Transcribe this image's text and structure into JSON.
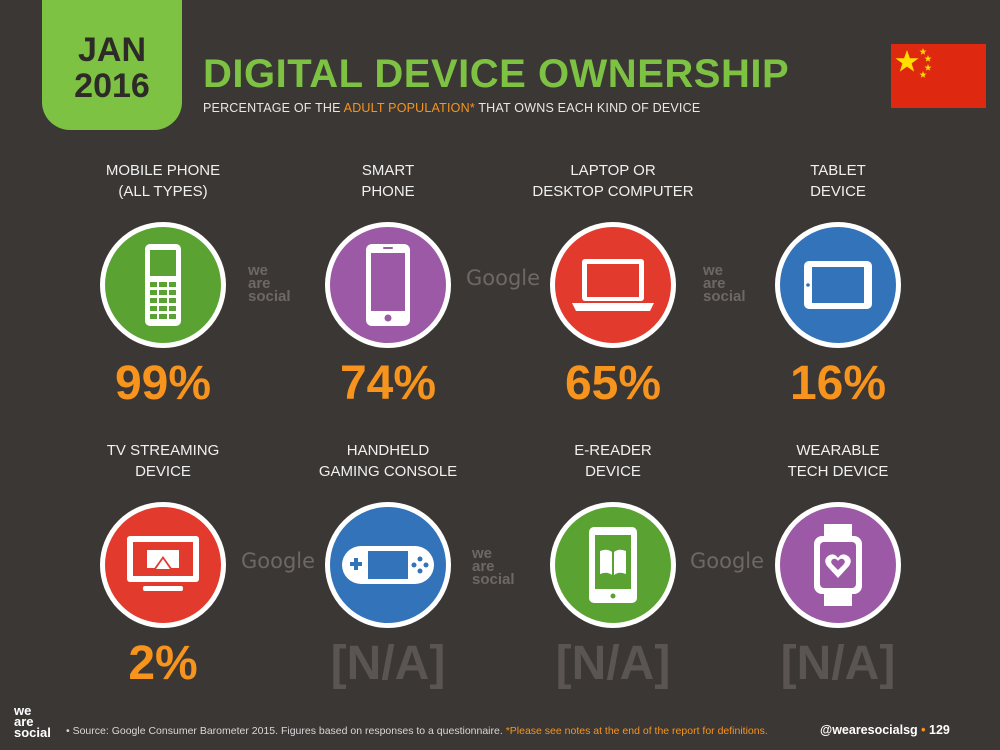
{
  "header": {
    "date_month": "JAN",
    "date_year": "2016",
    "title": "DIGITAL DEVICE OWNERSHIP",
    "subtitle_pre": "PERCENTAGE OF THE ",
    "subtitle_highlight": "ADULT POPULATION*",
    "subtitle_post": " THAT OWNS EACH KIND OF DEVICE",
    "flag": "china-flag"
  },
  "devices": [
    {
      "label_1": "MOBILE PHONE",
      "label_2": "(ALL TYPES)",
      "value": "99%",
      "color": "#5aa333",
      "icon": "feature-phone-icon"
    },
    {
      "label_1": "SMART",
      "label_2": "PHONE",
      "value": "74%",
      "color": "#9b59a6",
      "icon": "smartphone-icon"
    },
    {
      "label_1": "LAPTOP OR",
      "label_2": "DESKTOP COMPUTER",
      "value": "65%",
      "color": "#e23b2e",
      "icon": "laptop-icon"
    },
    {
      "label_1": "TABLET",
      "label_2": "DEVICE",
      "value": "16%",
      "color": "#3373b9",
      "icon": "tablet-icon"
    },
    {
      "label_1": "TV STREAMING",
      "label_2": "DEVICE",
      "value": "2%",
      "color": "#e23b2e",
      "icon": "tv-streaming-icon"
    },
    {
      "label_1": "HANDHELD",
      "label_2": "GAMING CONSOLE",
      "value": "[N/A]",
      "color": "#3373b9",
      "icon": "gaming-console-icon"
    },
    {
      "label_1": "E-READER",
      "label_2": "DEVICE",
      "value": "[N/A]",
      "color": "#5aa333",
      "icon": "e-reader-icon"
    },
    {
      "label_1": "WEARABLE",
      "label_2": "TECH DEVICE",
      "value": "[N/A]",
      "color": "#9b59a6",
      "icon": "smartwatch-icon"
    }
  ],
  "watermarks": {
    "google": "Google",
    "we_line_1": "we",
    "we_line_2": "are",
    "we_line_3": "social"
  },
  "footer": {
    "logo_1": "we",
    "logo_2": "are",
    "logo_3": "social",
    "source_pre": "• Source: Google Consumer Barometer 2015. Figures based on responses to a questionnaire. ",
    "source_highlight": "*Please see notes at the end of the report for definitions.",
    "handle": "@wearesocialsg",
    "separator": "•",
    "page_number": "129"
  }
}
